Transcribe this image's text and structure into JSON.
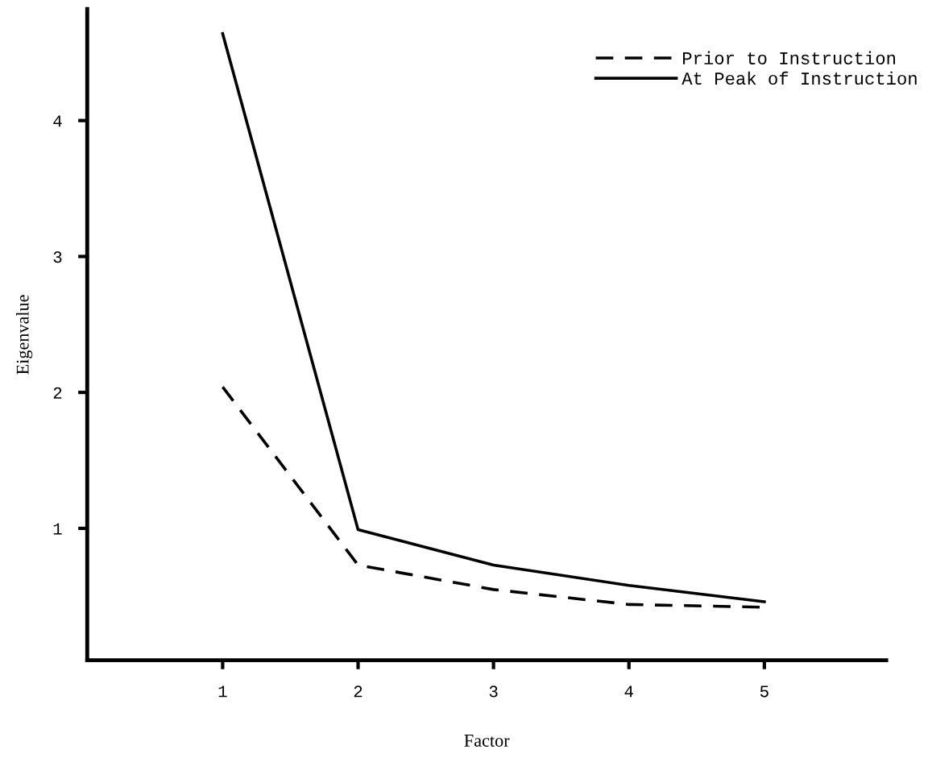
{
  "chart_data": {
    "type": "line",
    "xlabel": "Factor",
    "ylabel": "Eigenvalue",
    "x": [
      1,
      2,
      3,
      4,
      5
    ],
    "series": [
      {
        "name": "Prior to Instruction",
        "color": "#000000",
        "line_style": "dashed",
        "values": [
          2.04,
          0.73,
          0.55,
          0.44,
          0.42
        ]
      },
      {
        "name": "At Peak of Instruction",
        "color": "#000000",
        "line_style": "solid",
        "values": [
          4.64,
          0.99,
          0.73,
          0.58,
          0.46
        ]
      }
    ],
    "xlim": [
      0,
      5.9
    ],
    "xticks": [
      1,
      2,
      3,
      4,
      5
    ],
    "ylim": [
      0.03,
      4.82
    ],
    "yticks": [
      1,
      2,
      3,
      4
    ],
    "grid": false,
    "legend": "top right",
    "marker": "none"
  }
}
